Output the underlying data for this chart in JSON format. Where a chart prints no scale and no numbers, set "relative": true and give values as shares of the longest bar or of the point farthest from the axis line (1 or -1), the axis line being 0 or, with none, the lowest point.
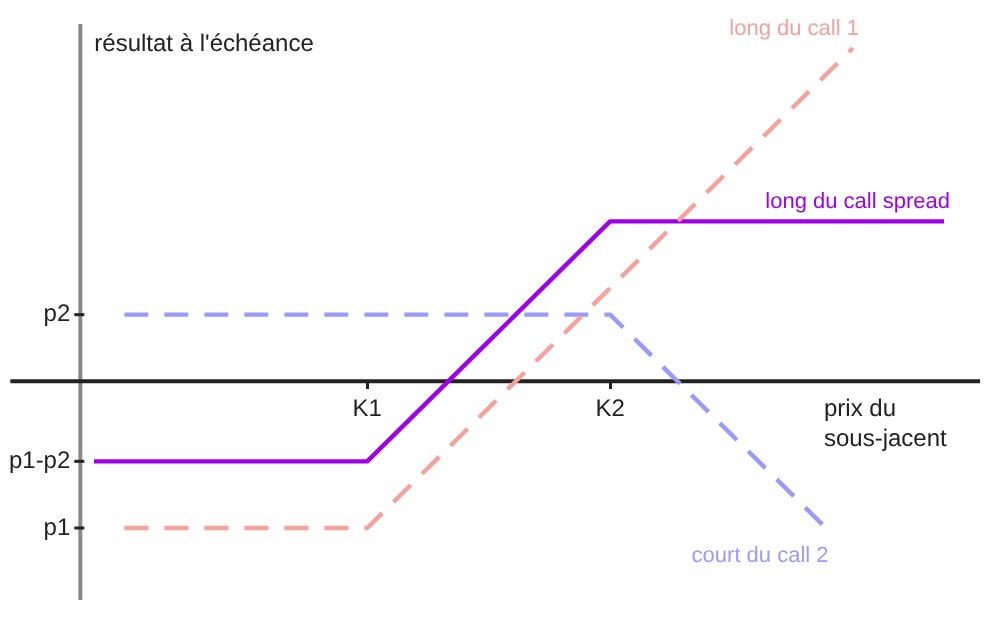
{
  "chart_data": {
    "type": "line",
    "relative": true,
    "xlabel": "prix du sous-jacent",
    "ylabel": "résultat à l'échéance",
    "categories": [
      null,
      null,
      null,
      null,
      null,
      null,
      null,
      null,
      null,
      "K1",
      null,
      null,
      null,
      null,
      null,
      null,
      null,
      "K2",
      null,
      null,
      null,
      null,
      null,
      null,
      null,
      null,
      null,
      null,
      null
    ],
    "annotations": [
      "p2",
      "p1-p2",
      "p1"
    ],
    "legend": false,
    "marker": "none",
    "series": [
      {
        "name": "long du call 1",
        "color": "#f5a19c",
        "line_style": "dashed",
        "values": [
          null,
          -0.44,
          -0.44,
          -0.44,
          -0.44,
          -0.44,
          -0.44,
          -0.44,
          -0.44,
          -0.44,
          -0.35,
          -0.26,
          -0.17,
          -0.08,
          0.01,
          0.1,
          0.19,
          0.28,
          0.37,
          0.46,
          0.55,
          0.64,
          0.73,
          0.82,
          0.91,
          1,
          null,
          null,
          null
        ]
      },
      {
        "name": "long du call spread",
        "color": "#a000e8",
        "line_style": "solid",
        "values": [
          -0.24,
          -0.24,
          -0.24,
          -0.24,
          -0.24,
          -0.24,
          -0.24,
          -0.24,
          -0.24,
          -0.24,
          -0.15,
          -0.06,
          0.03,
          0.12,
          0.21,
          0.3,
          0.39,
          0.48,
          0.48,
          0.48,
          0.48,
          0.48,
          0.48,
          0.48,
          0.48,
          0.48,
          0.48,
          0.48,
          0.48
        ]
      },
      {
        "name": "court du call 2",
        "color": "#9a9af8",
        "line_style": "dashed",
        "values": [
          null,
          0.2,
          0.2,
          0.2,
          0.2,
          0.2,
          0.2,
          0.2,
          0.2,
          0.2,
          0.2,
          0.2,
          0.2,
          0.2,
          0.2,
          0.2,
          0.2,
          0.2,
          0.11,
          0.02,
          -0.07,
          -0.16,
          -0.25,
          -0.34,
          -0.43,
          null,
          null,
          null,
          null
        ]
      }
    ]
  }
}
